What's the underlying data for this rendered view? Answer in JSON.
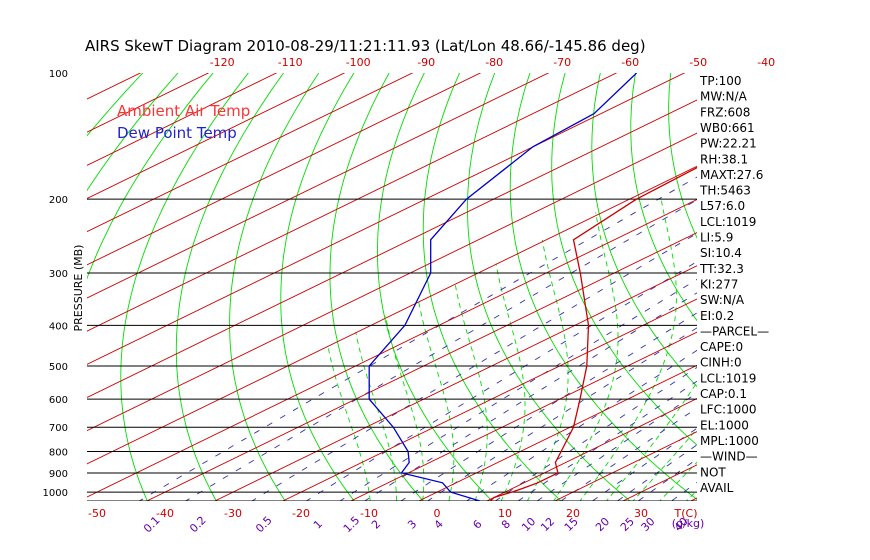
{
  "chart_data": {
    "type": "line",
    "title": "AIRS SkewT Diagram 2010-08-29/11:21:11.93 (Lat/Lon 48.66/-145.86 deg)",
    "ylabel": "PRESSURE (MB)",
    "y_scale": "log",
    "ylim": [
      1050,
      100
    ],
    "pressure_ticks": [
      100,
      200,
      300,
      400,
      500,
      600,
      700,
      800,
      900,
      1000
    ],
    "pressure_labels": [
      "100",
      "200",
      "300",
      "400",
      "500",
      "600",
      "700",
      "800",
      "900",
      "1000"
    ],
    "top_temp_labels": [
      "-120",
      "-110",
      "-100",
      "-90",
      "-80",
      "-70",
      "-60",
      "-50",
      "-40"
    ],
    "bottom_temp_labels": [
      "-50",
      "-40",
      "-30",
      "-20",
      "-10",
      "0",
      "10",
      "20",
      "30"
    ],
    "bottom_temp_unit": "T(C)",
    "mixing_ratio_labels": [
      "0.1",
      "0.2",
      "0.5",
      "1",
      "1.5",
      "2",
      "3",
      "4",
      "6",
      "8",
      "10",
      "12",
      "15",
      "20",
      "25",
      "30",
      "40"
    ],
    "mixing_ratio_unit": "(g/kg)",
    "legend": [
      {
        "label": "Ambient Air Temp",
        "color": "#ff3333"
      },
      {
        "label": "Dew Point Temp",
        "color": "#2222cc"
      }
    ],
    "series": [
      {
        "name": "Ambient Air Temp",
        "color": "#cc0000",
        "points": [
          {
            "p": 1050,
            "t": 10.5
          },
          {
            "p": 1030,
            "t": 10.0
          },
          {
            "p": 1000,
            "t": 11.0
          },
          {
            "p": 980,
            "t": 11.5
          },
          {
            "p": 950,
            "t": 12.0
          },
          {
            "p": 900,
            "t": 12.0
          },
          {
            "p": 850,
            "t": 8.5
          },
          {
            "p": 800,
            "t": 6.0
          },
          {
            "p": 700,
            "t": 0.5
          },
          {
            "p": 600,
            "t": -7.0
          },
          {
            "p": 500,
            "t": -16.0
          },
          {
            "p": 400,
            "t": -28.0
          },
          {
            "p": 300,
            "t": -45.0
          },
          {
            "p": 250,
            "t": -56.0
          },
          {
            "p": 200,
            "t": -59.0
          },
          {
            "p": 150,
            "t": -60.0
          },
          {
            "p": 125,
            "t": -59.0
          },
          {
            "p": 100,
            "t": -61.0
          }
        ]
      },
      {
        "name": "Dew Point Temp",
        "color": "#0000cc",
        "points": [
          {
            "p": 1050,
            "t": 9.0
          },
          {
            "p": 1000,
            "t": 2.0
          },
          {
            "p": 950,
            "t": -2.0
          },
          {
            "p": 900,
            "t": -11.0
          },
          {
            "p": 850,
            "t": -13.0
          },
          {
            "p": 800,
            "t": -16.5
          },
          {
            "p": 700,
            "t": -26.0
          },
          {
            "p": 600,
            "t": -38.0
          },
          {
            "p": 500,
            "t": -48.0
          },
          {
            "p": 400,
            "t": -55.0
          },
          {
            "p": 300,
            "t": -67.0
          },
          {
            "p": 250,
            "t": -77.0
          },
          {
            "p": 200,
            "t": -84.0
          },
          {
            "p": 150,
            "t": -90.0
          },
          {
            "p": 125,
            "t": -91.0
          },
          {
            "p": 100,
            "t": -97.0
          }
        ]
      }
    ],
    "grid": true
  },
  "stats": [
    "TP:100",
    "MW:N/A",
    "FRZ:608",
    "WB0:661",
    "PW:22.21",
    "RH:38.1",
    "MAXT:27.6",
    "TH:5463",
    "L57:6.0",
    "LCL:1019",
    "LI:5.9",
    "SI:10.4",
    "TT:32.3",
    "KI:277",
    "SW:N/A",
    "EI:0.2",
    "—PARCEL—",
    "CAPE:0",
    "CINH:0",
    "LCL:1019",
    "CAP:0.1",
    "LFC:1000",
    "EL:1000",
    "MPL:1000",
    "—WIND—",
    "NOT",
    "AVAIL"
  ],
  "colors": {
    "isotherm": "#cc0000",
    "dry_adiabat": "#00dd00",
    "moist_adiabat": "#00dd00",
    "mixing_ratio": "#3333aa",
    "isobar": "#000000",
    "tick_red": "#cc0000",
    "tick_purple": "#6600aa"
  }
}
